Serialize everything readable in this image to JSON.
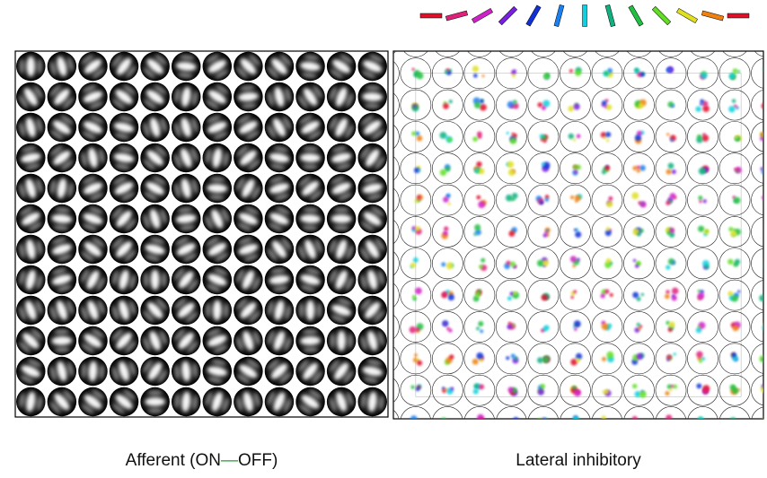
{
  "panels": [
    {
      "caption": {
        "before": "Afferent (ON",
        "dash": "—",
        "after": "OFF)"
      }
    },
    {
      "caption": "Lateral inhibitory"
    }
  ]
}
